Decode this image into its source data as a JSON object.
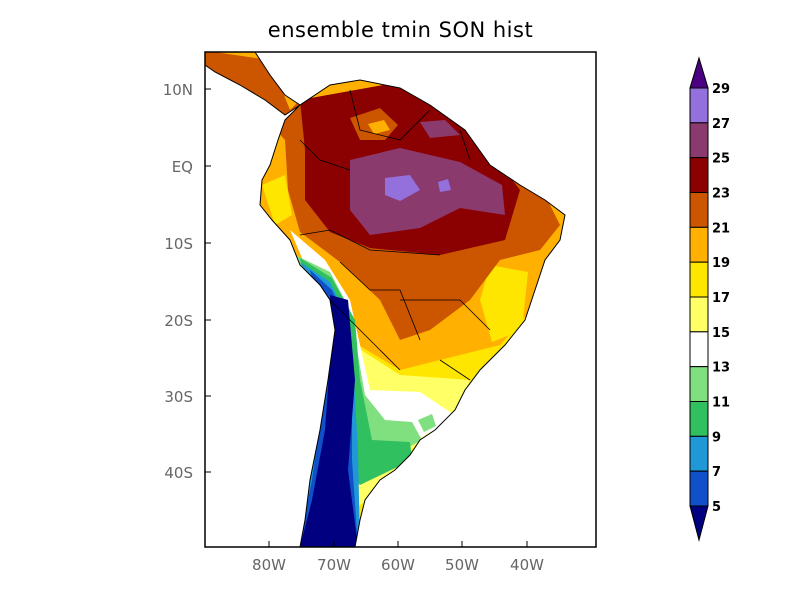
{
  "title": "ensemble tmin SON hist",
  "map": {
    "lon_labels": [
      "80W",
      "70W",
      "60W",
      "50W",
      "40W"
    ],
    "lat_labels": [
      "10N",
      "EQ",
      "10S",
      "20S",
      "30S",
      "40S"
    ],
    "extent": {
      "lon": [
        -90,
        -30
      ],
      "lat": [
        -50,
        15
      ]
    }
  },
  "colorbar": {
    "labels": [
      "29",
      "27",
      "25",
      "23",
      "21",
      "19",
      "17",
      "15",
      "13",
      "11",
      "9",
      "7",
      "5"
    ],
    "colors_high_to_low": [
      "#4b0082",
      "#9370db",
      "#8b3a6e",
      "#8b0000",
      "#cc5500",
      "#ffb000",
      "#ffe600",
      "#ffff66",
      "#ffffff",
      "#80e080",
      "#30c060",
      "#2098d8",
      "#1050c8",
      "#000080"
    ]
  }
}
